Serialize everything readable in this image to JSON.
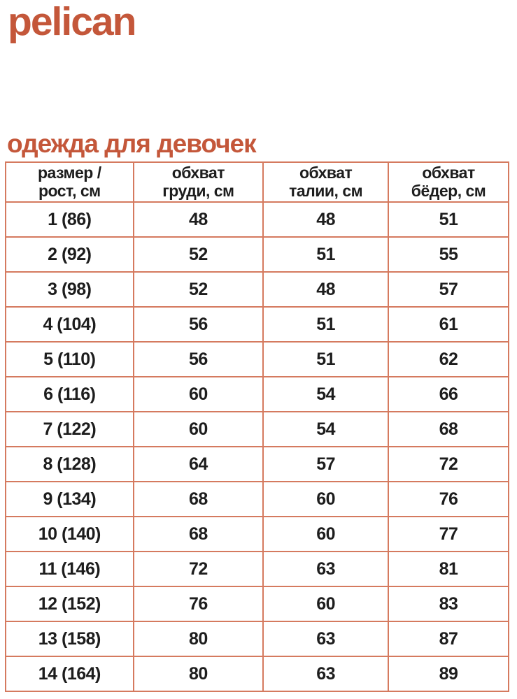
{
  "brand": {
    "logo_text": "pelican"
  },
  "heading": "одежда для девочек",
  "colors": {
    "accent": "#c4573a",
    "table_border": "#d57a5f",
    "text": "#1d1d1d",
    "background": "#ffffff"
  },
  "table": {
    "headers": [
      "размер /\nрост, см",
      "обхват\nгруди, см",
      "обхват\nталии, см",
      "обхват\nбёдер, см"
    ],
    "rows": [
      [
        "1 (86)",
        "48",
        "48",
        "51"
      ],
      [
        "2 (92)",
        "52",
        "51",
        "55"
      ],
      [
        "3 (98)",
        "52",
        "48",
        "57"
      ],
      [
        "4 (104)",
        "56",
        "51",
        "61"
      ],
      [
        "5 (110)",
        "56",
        "51",
        "62"
      ],
      [
        "6 (116)",
        "60",
        "54",
        "66"
      ],
      [
        "7 (122)",
        "60",
        "54",
        "68"
      ],
      [
        "8 (128)",
        "64",
        "57",
        "72"
      ],
      [
        "9 (134)",
        "68",
        "60",
        "76"
      ],
      [
        "10 (140)",
        "68",
        "60",
        "77"
      ],
      [
        "11 (146)",
        "72",
        "63",
        "81"
      ],
      [
        "12 (152)",
        "76",
        "60",
        "83"
      ],
      [
        "13 (158)",
        "80",
        "63",
        "87"
      ],
      [
        "14 (164)",
        "80",
        "63",
        "89"
      ]
    ]
  },
  "chart_data": {
    "type": "table",
    "title": "одежда для девочек",
    "columns": [
      "размер / рост, см",
      "обхват груди, см",
      "обхват талии, см",
      "обхват бёдер, см"
    ],
    "rows": [
      [
        "1 (86)",
        48,
        48,
        51
      ],
      [
        "2 (92)",
        52,
        51,
        55
      ],
      [
        "3 (98)",
        52,
        48,
        57
      ],
      [
        "4 (104)",
        56,
        51,
        61
      ],
      [
        "5 (110)",
        56,
        51,
        62
      ],
      [
        "6 (116)",
        60,
        54,
        66
      ],
      [
        "7 (122)",
        60,
        54,
        68
      ],
      [
        "8 (128)",
        64,
        57,
        72
      ],
      [
        "9 (134)",
        68,
        60,
        76
      ],
      [
        "10 (140)",
        68,
        60,
        77
      ],
      [
        "11 (146)",
        72,
        63,
        81
      ],
      [
        "12 (152)",
        76,
        60,
        83
      ],
      [
        "13 (158)",
        80,
        63,
        87
      ],
      [
        "14 (164)",
        80,
        63,
        89
      ]
    ]
  }
}
